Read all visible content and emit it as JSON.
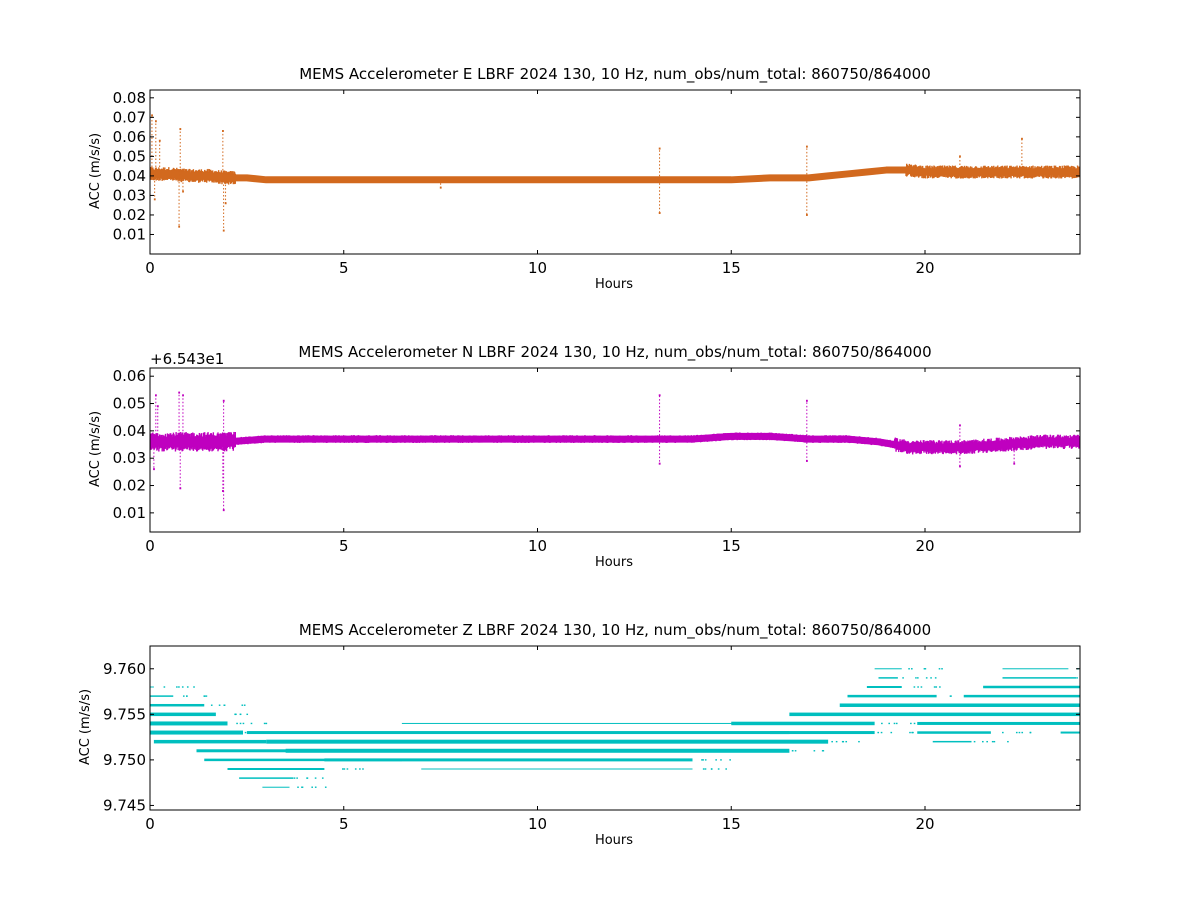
{
  "chart_data": [
    {
      "type": "scatter",
      "title": "MEMS Accelerometer E LBRF 2024 130, 10 Hz, num_obs/num_total: 860750/864000",
      "xlabel": "Hours",
      "ylabel": "ACC (m/s/s)",
      "xlim": [
        0,
        24
      ],
      "ylim": [
        0,
        0.084
      ],
      "x_ticks": [
        0,
        5,
        10,
        15,
        20
      ],
      "y_ticks": [
        0.01,
        0.02,
        0.03,
        0.04,
        0.05,
        0.06,
        0.07,
        0.08
      ],
      "y_offset_label": "",
      "grid": false,
      "color": "#D2691E",
      "series": [
        {
          "x": [
            0.0,
            0.5,
            1.0,
            1.5,
            2.0,
            2.5,
            3.0,
            4.0,
            5.0,
            6.0,
            7.0,
            8.0,
            9.0,
            10.0,
            11.0,
            12.0,
            13.0,
            14.0,
            15.0,
            16.0,
            17.0,
            17.5,
            18.0,
            18.5,
            19.0,
            19.5,
            20.0,
            21.0,
            22.0,
            23.0,
            24.0
          ],
          "y": [
            0.041,
            0.041,
            0.04,
            0.04,
            0.039,
            0.039,
            0.038,
            0.038,
            0.038,
            0.038,
            0.038,
            0.038,
            0.038,
            0.038,
            0.038,
            0.038,
            0.038,
            0.038,
            0.038,
            0.039,
            0.039,
            0.04,
            0.041,
            0.042,
            0.043,
            0.043,
            0.042,
            0.042,
            0.042,
            0.042,
            0.042
          ]
        }
      ],
      "outliers": [
        {
          "x": 0.05,
          "y": 0.071
        },
        {
          "x": 0.15,
          "y": 0.068
        },
        {
          "x": 0.25,
          "y": 0.058
        },
        {
          "x": 0.12,
          "y": 0.028
        },
        {
          "x": 0.78,
          "y": 0.064
        },
        {
          "x": 0.75,
          "y": 0.014
        },
        {
          "x": 0.85,
          "y": 0.032
        },
        {
          "x": 1.88,
          "y": 0.063
        },
        {
          "x": 1.9,
          "y": 0.012
        },
        {
          "x": 1.95,
          "y": 0.026
        },
        {
          "x": 13.15,
          "y": 0.054
        },
        {
          "x": 13.15,
          "y": 0.021
        },
        {
          "x": 16.95,
          "y": 0.055
        },
        {
          "x": 16.95,
          "y": 0.02
        },
        {
          "x": 22.5,
          "y": 0.059
        },
        {
          "x": 20.9,
          "y": 0.05
        },
        {
          "x": 7.5,
          "y": 0.034
        }
      ]
    },
    {
      "type": "scatter",
      "title": "MEMS Accelerometer N LBRF 2024 130, 10 Hz, num_obs/num_total: 860750/864000",
      "xlabel": "Hours",
      "ylabel": "ACC (m/s/s)",
      "xlim": [
        0,
        24
      ],
      "ylim": [
        0.003,
        0.063
      ],
      "x_ticks": [
        0,
        5,
        10,
        15,
        20
      ],
      "y_ticks": [
        0.01,
        0.02,
        0.03,
        0.04,
        0.05,
        0.06
      ],
      "y_offset_label": "+6.543e1",
      "grid": false,
      "color": "#BF00BF",
      "series": [
        {
          "x": [
            0.0,
            0.5,
            1.0,
            1.5,
            2.0,
            3.0,
            4.0,
            5.0,
            6.0,
            7.0,
            8.0,
            9.0,
            10.0,
            11.0,
            12.0,
            13.0,
            14.0,
            15.0,
            16.0,
            17.0,
            18.0,
            18.8,
            19.2,
            19.6,
            20.0,
            21.0,
            22.0,
            23.0,
            24.0
          ],
          "y": [
            0.036,
            0.036,
            0.036,
            0.036,
            0.036,
            0.037,
            0.037,
            0.037,
            0.037,
            0.037,
            0.037,
            0.037,
            0.037,
            0.037,
            0.037,
            0.037,
            0.037,
            0.038,
            0.038,
            0.037,
            0.037,
            0.036,
            0.035,
            0.034,
            0.034,
            0.034,
            0.035,
            0.036,
            0.036
          ]
        }
      ],
      "outliers": [
        {
          "x": 0.15,
          "y": 0.053
        },
        {
          "x": 0.2,
          "y": 0.049
        },
        {
          "x": 0.1,
          "y": 0.026
        },
        {
          "x": 0.75,
          "y": 0.054
        },
        {
          "x": 0.85,
          "y": 0.053
        },
        {
          "x": 0.78,
          "y": 0.019
        },
        {
          "x": 1.9,
          "y": 0.051
        },
        {
          "x": 1.88,
          "y": 0.018
        },
        {
          "x": 1.9,
          "y": 0.011
        },
        {
          "x": 13.15,
          "y": 0.053
        },
        {
          "x": 13.15,
          "y": 0.028
        },
        {
          "x": 16.95,
          "y": 0.051
        },
        {
          "x": 16.95,
          "y": 0.029
        },
        {
          "x": 20.9,
          "y": 0.042
        },
        {
          "x": 20.9,
          "y": 0.027
        },
        {
          "x": 22.3,
          "y": 0.028
        }
      ]
    },
    {
      "type": "scatter",
      "title": "MEMS Accelerometer Z LBRF 2024 130, 10 Hz, num_obs/num_total: 860750/864000",
      "xlabel": "Hours",
      "ylabel": "ACC (m/s/s)",
      "xlim": [
        0,
        24
      ],
      "ylim": [
        9.7445,
        9.7625
      ],
      "x_ticks": [
        0,
        5,
        10,
        15,
        20
      ],
      "y_ticks": [
        9.745,
        9.75,
        9.755,
        9.76
      ],
      "y_offset_label": "",
      "grid": false,
      "color": "#00BFBF",
      "quantized": true,
      "levels": [
        9.747,
        9.748,
        9.749,
        9.75,
        9.751,
        9.752,
        9.753,
        9.754,
        9.755,
        9.756,
        9.757,
        9.758,
        9.759,
        9.76
      ],
      "bands": [
        {
          "y": 9.758,
          "x0": 0.0,
          "x1": 0.1,
          "w": 1.0
        },
        {
          "y": 9.757,
          "x0": 0.0,
          "x1": 0.6,
          "w": 1.5
        },
        {
          "y": 9.756,
          "x0": 0.0,
          "x1": 1.4,
          "w": 2.5
        },
        {
          "y": 9.755,
          "x0": 0.0,
          "x1": 1.7,
          "w": 3.5
        },
        {
          "y": 9.754,
          "x0": 0.0,
          "x1": 2.0,
          "w": 4.0
        },
        {
          "y": 9.753,
          "x0": 0.0,
          "x1": 2.4,
          "w": 4.0
        },
        {
          "y": 9.752,
          "x0": 0.1,
          "x1": 3.0,
          "w": 3.5
        },
        {
          "y": 9.751,
          "x0": 1.2,
          "x1": 4.8,
          "w": 3.0
        },
        {
          "y": 9.75,
          "x0": 1.4,
          "x1": 6.5,
          "w": 2.5
        },
        {
          "y": 9.749,
          "x0": 2.0,
          "x1": 4.5,
          "w": 2.0
        },
        {
          "y": 9.748,
          "x0": 2.3,
          "x1": 3.7,
          "w": 1.5
        },
        {
          "y": 9.747,
          "x0": 2.9,
          "x1": 3.6,
          "w": 1.0
        },
        {
          "y": 9.753,
          "x0": 2.5,
          "x1": 16.5,
          "w": 3.0
        },
        {
          "y": 9.752,
          "x0": 3.0,
          "x1": 17.5,
          "w": 4.0
        },
        {
          "y": 9.751,
          "x0": 3.5,
          "x1": 16.5,
          "w": 4.0
        },
        {
          "y": 9.75,
          "x0": 4.5,
          "x1": 14.0,
          "w": 3.0
        },
        {
          "y": 9.749,
          "x0": 7.0,
          "x1": 14.0,
          "w": 1.0
        },
        {
          "y": 9.754,
          "x0": 6.5,
          "x1": 15.5,
          "w": 1.0
        },
        {
          "y": 9.754,
          "x0": 15.0,
          "x1": 18.7,
          "w": 3.5
        },
        {
          "y": 9.753,
          "x0": 16.0,
          "x1": 18.7,
          "w": 3.0
        },
        {
          "y": 9.755,
          "x0": 16.5,
          "x1": 24.0,
          "w": 3.5
        },
        {
          "y": 9.756,
          "x0": 17.8,
          "x1": 24.0,
          "w": 3.5
        },
        {
          "y": 9.757,
          "x0": 18.0,
          "x1": 20.3,
          "w": 2.5
        },
        {
          "y": 9.758,
          "x0": 18.5,
          "x1": 19.4,
          "w": 2.0
        },
        {
          "y": 9.759,
          "x0": 18.8,
          "x1": 19.3,
          "w": 1.5
        },
        {
          "y": 9.76,
          "x0": 18.7,
          "x1": 19.4,
          "w": 1.0
        },
        {
          "y": 9.754,
          "x0": 19.8,
          "x1": 24.0,
          "w": 3.0
        },
        {
          "y": 9.753,
          "x0": 19.8,
          "x1": 21.7,
          "w": 2.5
        },
        {
          "y": 9.752,
          "x0": 20.2,
          "x1": 21.2,
          "w": 1.5
        },
        {
          "y": 9.757,
          "x0": 21.0,
          "x1": 24.0,
          "w": 2.5
        },
        {
          "y": 9.758,
          "x0": 21.5,
          "x1": 24.0,
          "w": 2.5
        },
        {
          "y": 9.759,
          "x0": 22.0,
          "x1": 23.9,
          "w": 1.5
        },
        {
          "y": 9.76,
          "x0": 22.0,
          "x1": 23.7,
          "w": 1.0
        },
        {
          "y": 9.753,
          "x0": 23.5,
          "x1": 24.0,
          "w": 2.0
        }
      ]
    }
  ]
}
